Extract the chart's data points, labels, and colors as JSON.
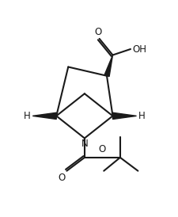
{
  "bg_color": "#ffffff",
  "line_color": "#1a1a1a",
  "lw": 1.5,
  "figsize": [
    2.25,
    2.74
  ],
  "dpi": 100,
  "xlim": [
    -1,
    11
  ],
  "ylim": [
    -0.5,
    12.5
  ]
}
